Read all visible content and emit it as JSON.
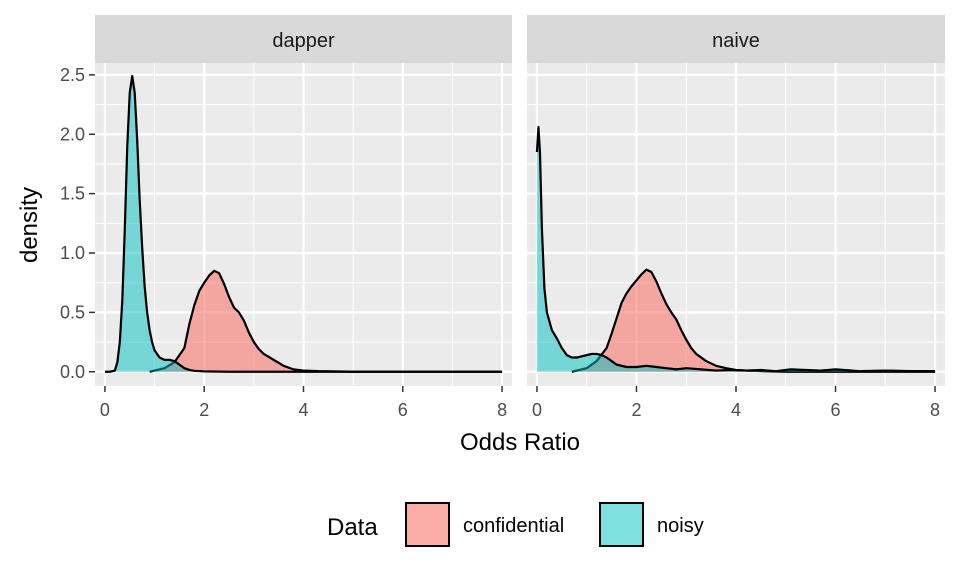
{
  "chart_data": {
    "type": "area",
    "subtype": "density",
    "xlabel": "Odds Ratio",
    "ylabel": "density",
    "xlim": [
      -0.2,
      8.2
    ],
    "ylim": [
      -0.12,
      2.6
    ],
    "x_ticks": [
      0,
      2,
      4,
      6,
      8
    ],
    "y_ticks": [
      0.0,
      0.5,
      1.0,
      1.5,
      2.0,
      2.5
    ],
    "x_tick_labels": [
      "0",
      "2",
      "4",
      "6",
      "8"
    ],
    "y_tick_labels": [
      "0.0",
      "0.5",
      "1.0",
      "1.5",
      "2.0",
      "2.5"
    ],
    "grid": true,
    "legend": {
      "title": "Data",
      "position": "bottom",
      "entries": [
        {
          "label": "confidential",
          "color": "#F8766D"
        },
        {
          "label": "noisy",
          "color": "#00BFC4"
        }
      ]
    },
    "colors": {
      "confidential": "#F8766D",
      "noisy": "#00BFC4",
      "panel_bg": "#EBEBEB",
      "strip_bg": "#D9D9D9"
    },
    "panels": [
      {
        "title": "dapper",
        "series": [
          {
            "name": "confidential",
            "x": [
              0.9,
              1.2,
              1.4,
              1.6,
              1.7,
              1.8,
              1.9,
              2.0,
              2.1,
              2.2,
              2.3,
              2.4,
              2.5,
              2.6,
              2.7,
              2.8,
              2.9,
              3.0,
              3.1,
              3.2,
              3.4,
              3.6,
              3.8,
              4.0,
              4.3,
              4.6,
              5.0,
              6.0,
              7.0,
              8.0
            ],
            "y": [
              0.0,
              0.03,
              0.08,
              0.2,
              0.4,
              0.56,
              0.68,
              0.75,
              0.81,
              0.85,
              0.83,
              0.74,
              0.63,
              0.54,
              0.5,
              0.43,
              0.33,
              0.25,
              0.19,
              0.15,
              0.1,
              0.05,
              0.02,
              0.01,
              0.005,
              0.003,
              0.0,
              0.0,
              0.0,
              0.0
            ]
          },
          {
            "name": "noisy",
            "x": [
              0.0,
              0.1,
              0.2,
              0.25,
              0.3,
              0.35,
              0.4,
              0.45,
              0.5,
              0.55,
              0.6,
              0.65,
              0.7,
              0.75,
              0.8,
              0.85,
              0.9,
              0.95,
              1.0,
              1.1,
              1.2,
              1.3,
              1.4,
              1.5,
              1.6,
              1.7,
              1.8,
              2.0,
              2.5,
              3.0,
              5.0,
              8.0
            ],
            "y": [
              0.0,
              0.0,
              0.01,
              0.08,
              0.25,
              0.6,
              1.2,
              1.9,
              2.35,
              2.49,
              2.35,
              1.95,
              1.45,
              1.05,
              0.72,
              0.5,
              0.35,
              0.25,
              0.18,
              0.12,
              0.1,
              0.1,
              0.09,
              0.06,
              0.03,
              0.015,
              0.008,
              0.003,
              0.0,
              0.0,
              0.0,
              0.0
            ]
          }
        ]
      },
      {
        "title": "naive",
        "series": [
          {
            "name": "confidential",
            "x": [
              0.7,
              1.0,
              1.2,
              1.4,
              1.5,
              1.6,
              1.7,
              1.8,
              1.9,
              2.0,
              2.1,
              2.2,
              2.3,
              2.4,
              2.5,
              2.6,
              2.7,
              2.8,
              2.9,
              3.0,
              3.1,
              3.2,
              3.4,
              3.6,
              3.8,
              4.0,
              4.3,
              4.6,
              5.0,
              6.0,
              7.0,
              8.0
            ],
            "y": [
              0.0,
              0.03,
              0.09,
              0.2,
              0.32,
              0.45,
              0.58,
              0.66,
              0.72,
              0.77,
              0.82,
              0.86,
              0.84,
              0.76,
              0.66,
              0.57,
              0.5,
              0.44,
              0.35,
              0.27,
              0.2,
              0.15,
              0.09,
              0.05,
              0.03,
              0.015,
              0.008,
              0.004,
              0.0,
              0.0,
              0.0,
              0.0
            ]
          },
          {
            "name": "noisy",
            "x": [
              0.0,
              0.03,
              0.06,
              0.1,
              0.15,
              0.2,
              0.3,
              0.4,
              0.5,
              0.6,
              0.7,
              0.8,
              0.9,
              1.0,
              1.1,
              1.2,
              1.3,
              1.4,
              1.5,
              1.6,
              1.8,
              2.0,
              2.2,
              2.4,
              2.6,
              2.8,
              3.0,
              3.3,
              3.6,
              3.9,
              4.2,
              4.5,
              4.8,
              5.1,
              5.4,
              5.7,
              6.0,
              6.5,
              7.0,
              7.5,
              8.0
            ],
            "y": [
              1.85,
              2.06,
              1.85,
              1.2,
              0.7,
              0.5,
              0.35,
              0.28,
              0.2,
              0.14,
              0.12,
              0.12,
              0.13,
              0.14,
              0.15,
              0.15,
              0.14,
              0.12,
              0.09,
              0.06,
              0.04,
              0.04,
              0.05,
              0.04,
              0.03,
              0.02,
              0.03,
              0.02,
              0.01,
              0.015,
              0.01,
              0.015,
              0.005,
              0.02,
              0.015,
              0.01,
              0.02,
              0.005,
              0.01,
              0.005,
              0.005
            ]
          }
        ]
      }
    ]
  }
}
